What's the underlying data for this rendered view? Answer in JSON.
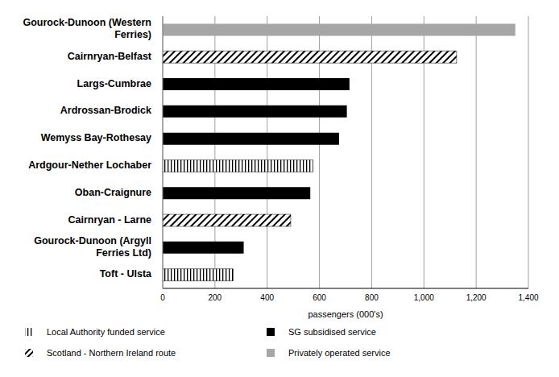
{
  "chart_data": {
    "type": "bar",
    "orientation": "horizontal",
    "stacked": true,
    "legend": "bottom",
    "grid": true,
    "x_label": "passengers (000's)",
    "categories": [
      "Gourock-Dunoon (Western Ferries)",
      "Cairnryan-Belfast",
      "Largs-Cumbrae",
      "Ardrossan-Brodick",
      "Wemyss Bay-Rothesay",
      "Ardgour-Nether Lochaber",
      "Oban-Craignure",
      "Cairnryan - Larne",
      "Gourock-Dunoon (Argyll Ferries Ltd)",
      "Toft - Ulsta"
    ],
    "xlim": [
      0,
      1400
    ],
    "xticks": [
      0,
      200,
      400,
      600,
      800,
      {
        "value": 1000,
        "label": "1,000"
      },
      {
        "value": 1200,
        "label": "1,200"
      },
      {
        "value": 1400,
        "label": "1,400"
      }
    ],
    "series": [
      {
        "name": "Local Authority funded service",
        "color": "#000000",
        "values": [
          null,
          null,
          null,
          null,
          null,
          575,
          null,
          null,
          null,
          270
        ]
      },
      {
        "name": "SG subsidised service",
        "color": "#000000",
        "values": [
          null,
          null,
          715,
          705,
          675,
          null,
          565,
          null,
          310,
          null
        ]
      },
      {
        "name": "Scotland - Northern Ireland route",
        "color": "#000000",
        "values": [
          null,
          1125,
          null,
          null,
          null,
          null,
          null,
          490,
          null,
          null
        ]
      },
      {
        "name": "Privately operated service",
        "color": "#a6a6a6",
        "values": [
          1350,
          null,
          null,
          null,
          null,
          null,
          null,
          null,
          null,
          null
        ]
      }
    ]
  }
}
